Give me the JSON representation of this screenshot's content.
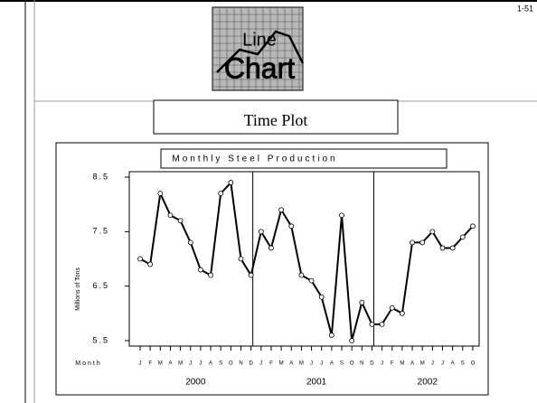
{
  "slide": {
    "page_number": "1-51",
    "logo_top": "Line",
    "logo_bottom": "Chart",
    "heading": "Time Plot"
  },
  "chart_data": {
    "type": "line",
    "title": "Monthly Steel Production",
    "y_label": "Millions of Tons",
    "x_label": "Month",
    "categories": [
      "J",
      "F",
      "M",
      "A",
      "M",
      "J",
      "J",
      "A",
      "S",
      "O",
      "N",
      "D",
      "J",
      "F",
      "M",
      "A",
      "M",
      "J",
      "J",
      "A",
      "S",
      "O",
      "N",
      "D",
      "J",
      "F",
      "M",
      "A",
      "M",
      "J",
      "J",
      "A",
      "S",
      "O"
    ],
    "groups": [
      "2000",
      "2001",
      "2002"
    ],
    "series": [
      {
        "name": "Monthly Steel Production",
        "color": "#000000",
        "values": [
          7.0,
          6.9,
          8.2,
          7.8,
          7.7,
          7.3,
          6.8,
          6.7,
          8.2,
          8.4,
          7.0,
          6.7,
          7.5,
          7.2,
          7.9,
          7.6,
          6.7,
          6.6,
          6.3,
          5.6,
          7.8,
          5.5,
          6.2,
          5.8,
          5.8,
          6.1,
          6.0,
          7.3,
          7.3,
          7.5,
          7.2,
          7.2,
          7.4,
          7.6
        ]
      }
    ],
    "ylim": [
      5.4,
      8.6
    ],
    "yticks": [
      5.5,
      6.5,
      7.5,
      8.5
    ]
  }
}
